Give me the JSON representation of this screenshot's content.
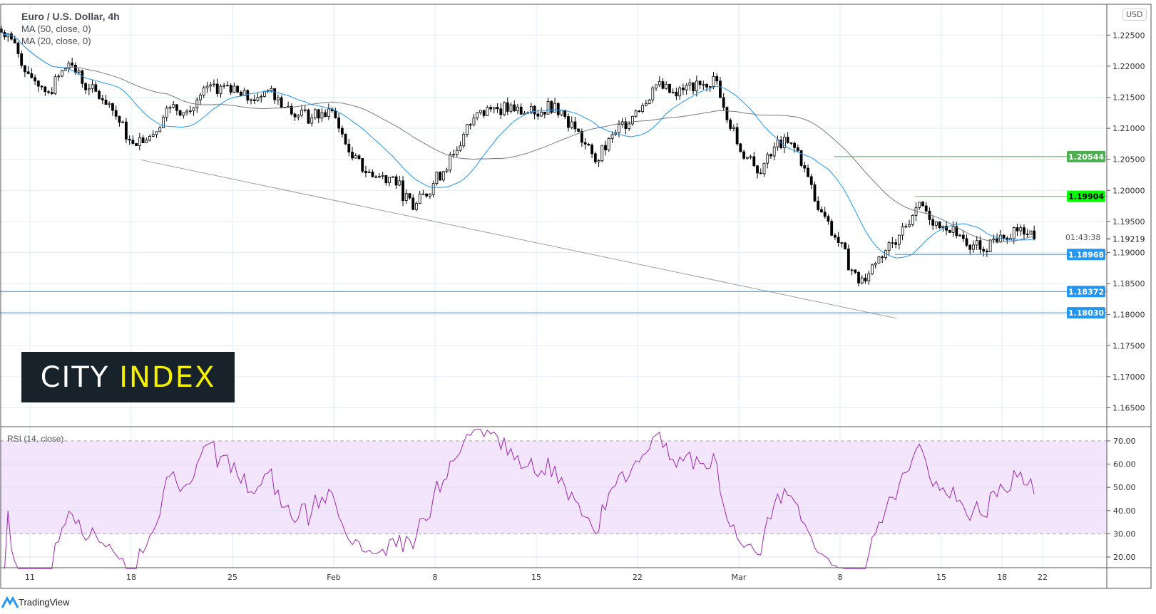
{
  "header": {
    "title": "Euro / U.S. Dollar, 4h",
    "indicators": [
      "MA (50, close, 0)",
      "MA (20, close, 0)"
    ],
    "currency_badge": "USD"
  },
  "logo": {
    "word1": "CITY",
    "word2": "INDEX"
  },
  "footer": {
    "brand": "TradingView"
  },
  "rsi_pane": {
    "label": "RSI (14, close)"
  },
  "colors": {
    "ma20": "#2196f3",
    "ma50": "#787b86",
    "rsi": "#9c27b0",
    "rsi_band": "#f3e6fc",
    "grid": "#e3eef5",
    "level_green": "#4caf50",
    "level_lime": "#00ff00",
    "level_blue": "#2196f3",
    "trendline": "#9e9e9e",
    "candle_down": "#000000",
    "candle_up": "#ffffff"
  },
  "chart_data": {
    "type": "candlestick",
    "symbol": "EUR/USD",
    "timeframe": "4h",
    "y_ticks": [
      "1.22500",
      "1.22000",
      "1.21500",
      "1.21000",
      "1.20500",
      "1.20000",
      "1.19500",
      "1.19000",
      "1.18500",
      "1.18000",
      "1.17500",
      "1.17000",
      "1.16500"
    ],
    "ylim": [
      1.1625,
      1.2275
    ],
    "x_tick_labels": [
      "11",
      "18",
      "25",
      "Feb",
      "8",
      "15",
      "22",
      "Mar",
      "8",
      "15",
      "18",
      "22"
    ],
    "daily_closes": [
      {
        "d": "Jan 7",
        "c": 1.2252
      },
      {
        "d": "Jan 8",
        "c": 1.2188
      },
      {
        "d": "Jan 11",
        "c": 1.2158
      },
      {
        "d": "Jan 12",
        "c": 1.2205
      },
      {
        "d": "Jan 13",
        "c": 1.2164
      },
      {
        "d": "Jan 14",
        "c": 1.214
      },
      {
        "d": "Jan 15",
        "c": 1.2081
      },
      {
        "d": "Jan 18",
        "c": 1.2087
      },
      {
        "d": "Jan 19",
        "c": 1.2134
      },
      {
        "d": "Jan 20",
        "c": 1.2128
      },
      {
        "d": "Jan 21",
        "c": 1.217
      },
      {
        "d": "Jan 22",
        "c": 1.2158
      },
      {
        "d": "Jan 25",
        "c": 1.2146
      },
      {
        "d": "Jan 26",
        "c": 1.2164
      },
      {
        "d": "Jan 27",
        "c": 1.2123
      },
      {
        "d": "Jan 28",
        "c": 1.2117
      },
      {
        "d": "Jan 29",
        "c": 1.2128
      },
      {
        "d": "Feb 1",
        "c": 1.2052
      },
      {
        "d": "Feb 2",
        "c": 1.2022
      },
      {
        "d": "Feb 3",
        "c": 1.2022
      },
      {
        "d": "Feb 4",
        "c": 1.1969
      },
      {
        "d": "Feb 5",
        "c": 1.2011
      },
      {
        "d": "Feb 8",
        "c": 1.2058
      },
      {
        "d": "Feb 9",
        "c": 1.2117
      },
      {
        "d": "Feb 10",
        "c": 1.2134
      },
      {
        "d": "Feb 11",
        "c": 1.2128
      },
      {
        "d": "Feb 12",
        "c": 1.2123
      },
      {
        "d": "Feb 15",
        "c": 1.214
      },
      {
        "d": "Feb 16",
        "c": 1.2099
      },
      {
        "d": "Feb 17",
        "c": 1.2046
      },
      {
        "d": "Feb 18",
        "c": 1.2093
      },
      {
        "d": "Feb 19",
        "c": 1.2128
      },
      {
        "d": "Feb 22",
        "c": 1.217
      },
      {
        "d": "Feb 23",
        "c": 1.2152
      },
      {
        "d": "Feb 24",
        "c": 1.2176
      },
      {
        "d": "Feb 25",
        "c": 1.2176
      },
      {
        "d": "Feb 26",
        "c": 1.2075
      },
      {
        "d": "Mar 1",
        "c": 1.2028
      },
      {
        "d": "Mar 2",
        "c": 1.2081
      },
      {
        "d": "Mar 3",
        "c": 1.2064
      },
      {
        "d": "Mar 4",
        "c": 1.1969
      },
      {
        "d": "Mar 5",
        "c": 1.1916
      },
      {
        "d": "Mar 8",
        "c": 1.1851
      },
      {
        "d": "Mar 9",
        "c": 1.1893
      },
      {
        "d": "Mar 10",
        "c": 1.1928
      },
      {
        "d": "Mar 11",
        "c": 1.1981
      },
      {
        "d": "Mar 12",
        "c": 1.194
      },
      {
        "d": "Mar 15",
        "c": 1.1928
      },
      {
        "d": "Mar 16",
        "c": 1.1905
      },
      {
        "d": "Mar 17",
        "c": 1.1928
      },
      {
        "d": "Mar 18",
        "c": 1.194
      },
      {
        "d": "Mar 19",
        "c": 1.19219
      }
    ],
    "last_price": {
      "value": "1.19219",
      "countdown": "01:43:38"
    },
    "levels": [
      {
        "value": 1.20544,
        "label": "1.20544",
        "color": "green",
        "from": "Mar 5"
      },
      {
        "value": 1.19904,
        "label": "1.19904",
        "color": "lime",
        "from": "Mar 11"
      },
      {
        "value": 1.18968,
        "label": "1.18968",
        "color": "blue",
        "from": "Mar 10"
      },
      {
        "value": 1.18372,
        "label": "1.18372",
        "color": "blue",
        "from": "start"
      },
      {
        "value": 1.1803,
        "label": "1.18030",
        "color": "blue",
        "from": "start"
      }
    ],
    "trendline": {
      "from": {
        "d": "Jan 18",
        "price": 1.2049
      },
      "to": {
        "d": "Mar 10",
        "price": 1.1794
      }
    },
    "moving_averages": [
      {
        "name": "MA (50, close, 0)",
        "period": 50
      },
      {
        "name": "MA (20, close, 0)",
        "period": 20
      }
    ],
    "rsi": {
      "period": 14,
      "ylim": [
        15,
        75
      ],
      "y_ticks": [
        "70.00",
        "60.00",
        "50.00",
        "40.00",
        "30.00",
        "20.00"
      ],
      "band": [
        30,
        70
      ]
    }
  }
}
